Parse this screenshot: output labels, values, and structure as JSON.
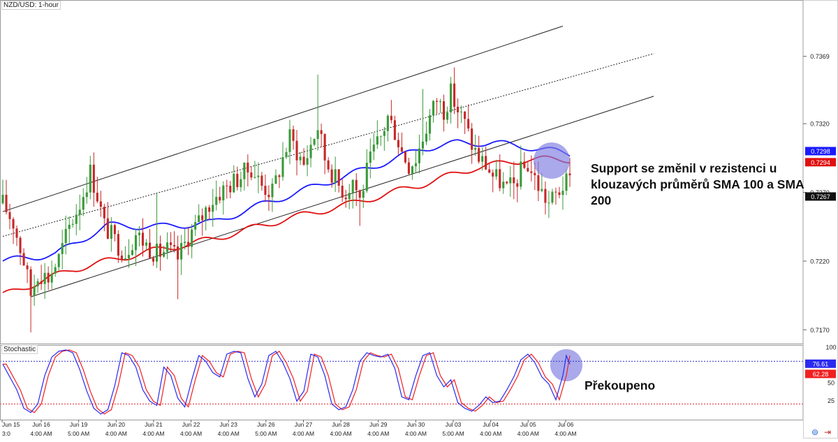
{
  "header": {
    "symbol_label": "NZD/USD: 1-hour"
  },
  "stoch_panel": {
    "label": "Stochastic"
  },
  "annotations": {
    "resistance": "Support se změnil v rezistenci u klouzavých průměrů SMA 100 a SMA 200",
    "overbought": "Překoupeno"
  },
  "colors": {
    "bull": "#3a9a3a",
    "bear": "#c62828",
    "sma100": "#1a1aff",
    "sma200": "#e01010",
    "channel": "#222222",
    "highlight": "#7b7be0",
    "stoch_k": "#2a2af0",
    "stoch_d": "#f02020",
    "level80": "#3333cc",
    "level20": "#dd2222"
  },
  "chart_data": [
    {
      "type": "candlestick",
      "title": "NZD/USD: 1-hour",
      "ylim": [
        0.716,
        0.741
      ],
      "ytick_labels": [
        "0.7369",
        "0.7320",
        "0.7270",
        "0.7220",
        "0.7170"
      ],
      "yticks": [
        0.7369,
        0.732,
        0.727,
        0.722,
        0.717
      ],
      "price_tags": [
        {
          "value": 0.7298,
          "label": "0.7298",
          "series": "SMA 100"
        },
        {
          "value": 0.7294,
          "label": "0.7294",
          "series": "SMA 200"
        },
        {
          "value": 0.7267,
          "label": "0.7267",
          "series": "price"
        }
      ],
      "x_ticks": [
        {
          "date": "Jun 15",
          "time": "3:0"
        },
        {
          "date": "Jun 16",
          "time": "4:00 AM"
        },
        {
          "date": "Jun 19",
          "time": "5:00 AM"
        },
        {
          "date": "Jun 20",
          "time": "4:00 AM"
        },
        {
          "date": "Jun 21",
          "time": "4:00 AM"
        },
        {
          "date": "Jun 22",
          "time": "4:00 AM"
        },
        {
          "date": "Jun 23",
          "time": "4:00 AM"
        },
        {
          "date": "Jun 26",
          "time": "5:00 AM"
        },
        {
          "date": "Jun 27",
          "time": "4:00 AM"
        },
        {
          "date": "Jun 28",
          "time": "4:00 AM"
        },
        {
          "date": "Jun 29",
          "time": "4:00 AM"
        },
        {
          "date": "Jun 30",
          "time": "4:00 AM"
        },
        {
          "date": "Jul 03",
          "time": "5:00 AM"
        },
        {
          "date": "Jul 04",
          "time": "4:00 AM"
        },
        {
          "date": "Jul 05",
          "time": "4:00 AM"
        },
        {
          "date": "Jul 06",
          "time": "4:00 AM"
        }
      ],
      "price_anchors": [
        [
          0,
          0.7262
        ],
        [
          3,
          0.7248
        ],
        [
          6,
          0.722
        ],
        [
          8,
          0.7196
        ],
        [
          10,
          0.7212
        ],
        [
          13,
          0.7208
        ],
        [
          16,
          0.7222
        ],
        [
          19,
          0.7245
        ],
        [
          22,
          0.7262
        ],
        [
          25,
          0.7285
        ],
        [
          27,
          0.7268
        ],
        [
          29,
          0.7246
        ],
        [
          32,
          0.7235
        ],
        [
          35,
          0.7226
        ],
        [
          38,
          0.724
        ],
        [
          41,
          0.7232
        ],
        [
          44,
          0.7225
        ],
        [
          47,
          0.7228
        ],
        [
          50,
          0.7222
        ],
        [
          53,
          0.7238
        ],
        [
          56,
          0.7248
        ],
        [
          59,
          0.7262
        ],
        [
          62,
          0.727
        ],
        [
          65,
          0.7276
        ],
        [
          68,
          0.7282
        ],
        [
          71,
          0.7288
        ],
        [
          74,
          0.7275
        ],
        [
          77,
          0.727
        ],
        [
          80,
          0.7295
        ],
        [
          82,
          0.731
        ],
        [
          84,
          0.73
        ],
        [
          86,
          0.729
        ],
        [
          88,
          0.7305
        ],
        [
          90,
          0.7318
        ],
        [
          92,
          0.7295
        ],
        [
          94,
          0.7285
        ],
        [
          96,
          0.7275
        ],
        [
          98,
          0.727
        ],
        [
          100,
          0.728
        ],
        [
          102,
          0.7265
        ],
        [
          104,
          0.7285
        ],
        [
          106,
          0.73
        ],
        [
          108,
          0.731
        ],
        [
          110,
          0.7325
        ],
        [
          112,
          0.7315
        ],
        [
          114,
          0.73
        ],
        [
          116,
          0.729
        ],
        [
          118,
          0.7295
        ],
        [
          120,
          0.731
        ],
        [
          122,
          0.7325
        ],
        [
          124,
          0.7338
        ],
        [
          126,
          0.733
        ],
        [
          128,
          0.7342
        ],
        [
          130,
          0.733
        ],
        [
          132,
          0.732
        ],
        [
          134,
          0.7305
        ],
        [
          136,
          0.7295
        ],
        [
          138,
          0.729
        ],
        [
          140,
          0.7282
        ],
        [
          142,
          0.7278
        ],
        [
          144,
          0.7272
        ],
        [
          146,
          0.7275
        ],
        [
          148,
          0.7285
        ],
        [
          150,
          0.729
        ],
        [
          152,
          0.728
        ],
        [
          154,
          0.727
        ],
        [
          156,
          0.7262
        ],
        [
          158,
          0.7268
        ],
        [
          160,
          0.7275
        ],
        [
          162,
          0.7278
        ]
      ],
      "series": [
        {
          "name": "SMA 100",
          "anchors": [
            [
              0,
              0.722
            ],
            [
              15,
              0.7225
            ],
            [
              30,
              0.7246
            ],
            [
              45,
              0.7245
            ],
            [
              60,
              0.7248
            ],
            [
              75,
              0.7262
            ],
            [
              90,
              0.7275
            ],
            [
              105,
              0.7288
            ],
            [
              120,
              0.7302
            ],
            [
              130,
              0.7306
            ],
            [
              140,
              0.7306
            ],
            [
              150,
              0.7303
            ],
            [
              162,
              0.7298
            ]
          ]
        },
        {
          "name": "SMA 200",
          "anchors": [
            [
              0,
              0.7195
            ],
            [
              20,
              0.7214
            ],
            [
              40,
              0.7226
            ],
            [
              60,
              0.7236
            ],
            [
              80,
              0.725
            ],
            [
              100,
              0.7262
            ],
            [
              120,
              0.7276
            ],
            [
              135,
              0.7288
            ],
            [
              150,
              0.7294
            ],
            [
              162,
              0.7294
            ]
          ]
        }
      ],
      "trend_channel": {
        "upper": [
          [
            0,
            0.7256
          ],
          [
            160,
            0.7391
          ]
        ],
        "middle": [
          [
            0,
            0.7238
          ],
          [
            186,
            0.7371
          ]
        ],
        "lower": [
          [
            8,
            0.7194
          ],
          [
            186,
            0.734
          ]
        ]
      }
    },
    {
      "type": "line",
      "title": "Stochastic",
      "ylim": [
        0,
        100
      ],
      "ytick_labels": [
        "100",
        "75",
        "50",
        "25"
      ],
      "yticks": [
        100,
        75,
        50,
        25
      ],
      "levels": [
        80,
        20
      ],
      "value_tags": [
        {
          "value": 76.61,
          "label": "76.61"
        },
        {
          "value": 62.28,
          "label": "62.28"
        }
      ],
      "k_anchors": [
        [
          0,
          76
        ],
        [
          4,
          40
        ],
        [
          6,
          14
        ],
        [
          8,
          8
        ],
        [
          10,
          20
        ],
        [
          12,
          60
        ],
        [
          14,
          86
        ],
        [
          16,
          94
        ],
        [
          18,
          96
        ],
        [
          20,
          92
        ],
        [
          22,
          68
        ],
        [
          24,
          38
        ],
        [
          26,
          14
        ],
        [
          28,
          6
        ],
        [
          30,
          12
        ],
        [
          32,
          46
        ],
        [
          34,
          92
        ],
        [
          36,
          88
        ],
        [
          38,
          72
        ],
        [
          40,
          40
        ],
        [
          42,
          24
        ],
        [
          44,
          18
        ],
        [
          46,
          72
        ],
        [
          48,
          60
        ],
        [
          50,
          28
        ],
        [
          52,
          16
        ],
        [
          54,
          54
        ],
        [
          56,
          88
        ],
        [
          58,
          80
        ],
        [
          60,
          64
        ],
        [
          62,
          58
        ],
        [
          64,
          90
        ],
        [
          66,
          94
        ],
        [
          68,
          92
        ],
        [
          70,
          56
        ],
        [
          72,
          30
        ],
        [
          74,
          48
        ],
        [
          76,
          88
        ],
        [
          78,
          94
        ],
        [
          80,
          78
        ],
        [
          82,
          56
        ],
        [
          84,
          24
        ],
        [
          86,
          38
        ],
        [
          88,
          90
        ],
        [
          90,
          86
        ],
        [
          92,
          60
        ],
        [
          94,
          20
        ],
        [
          96,
          12
        ],
        [
          98,
          16
        ],
        [
          100,
          40
        ],
        [
          102,
          80
        ],
        [
          104,
          92
        ],
        [
          106,
          88
        ],
        [
          108,
          86
        ],
        [
          110,
          90
        ],
        [
          112,
          70
        ],
        [
          114,
          30
        ],
        [
          116,
          26
        ],
        [
          118,
          60
        ],
        [
          120,
          88
        ],
        [
          122,
          92
        ],
        [
          124,
          60
        ],
        [
          126,
          44
        ],
        [
          128,
          54
        ],
        [
          130,
          22
        ],
        [
          132,
          14
        ],
        [
          134,
          10
        ],
        [
          136,
          18
        ],
        [
          138,
          30
        ],
        [
          140,
          22
        ],
        [
          142,
          24
        ],
        [
          144,
          40
        ],
        [
          146,
          58
        ],
        [
          148,
          82
        ],
        [
          150,
          90
        ],
        [
          152,
          78
        ],
        [
          154,
          58
        ],
        [
          156,
          48
        ],
        [
          158,
          26
        ],
        [
          160,
          60
        ],
        [
          161,
          88
        ],
        [
          162,
          76
        ]
      ],
      "d_lag": 1
    }
  ]
}
